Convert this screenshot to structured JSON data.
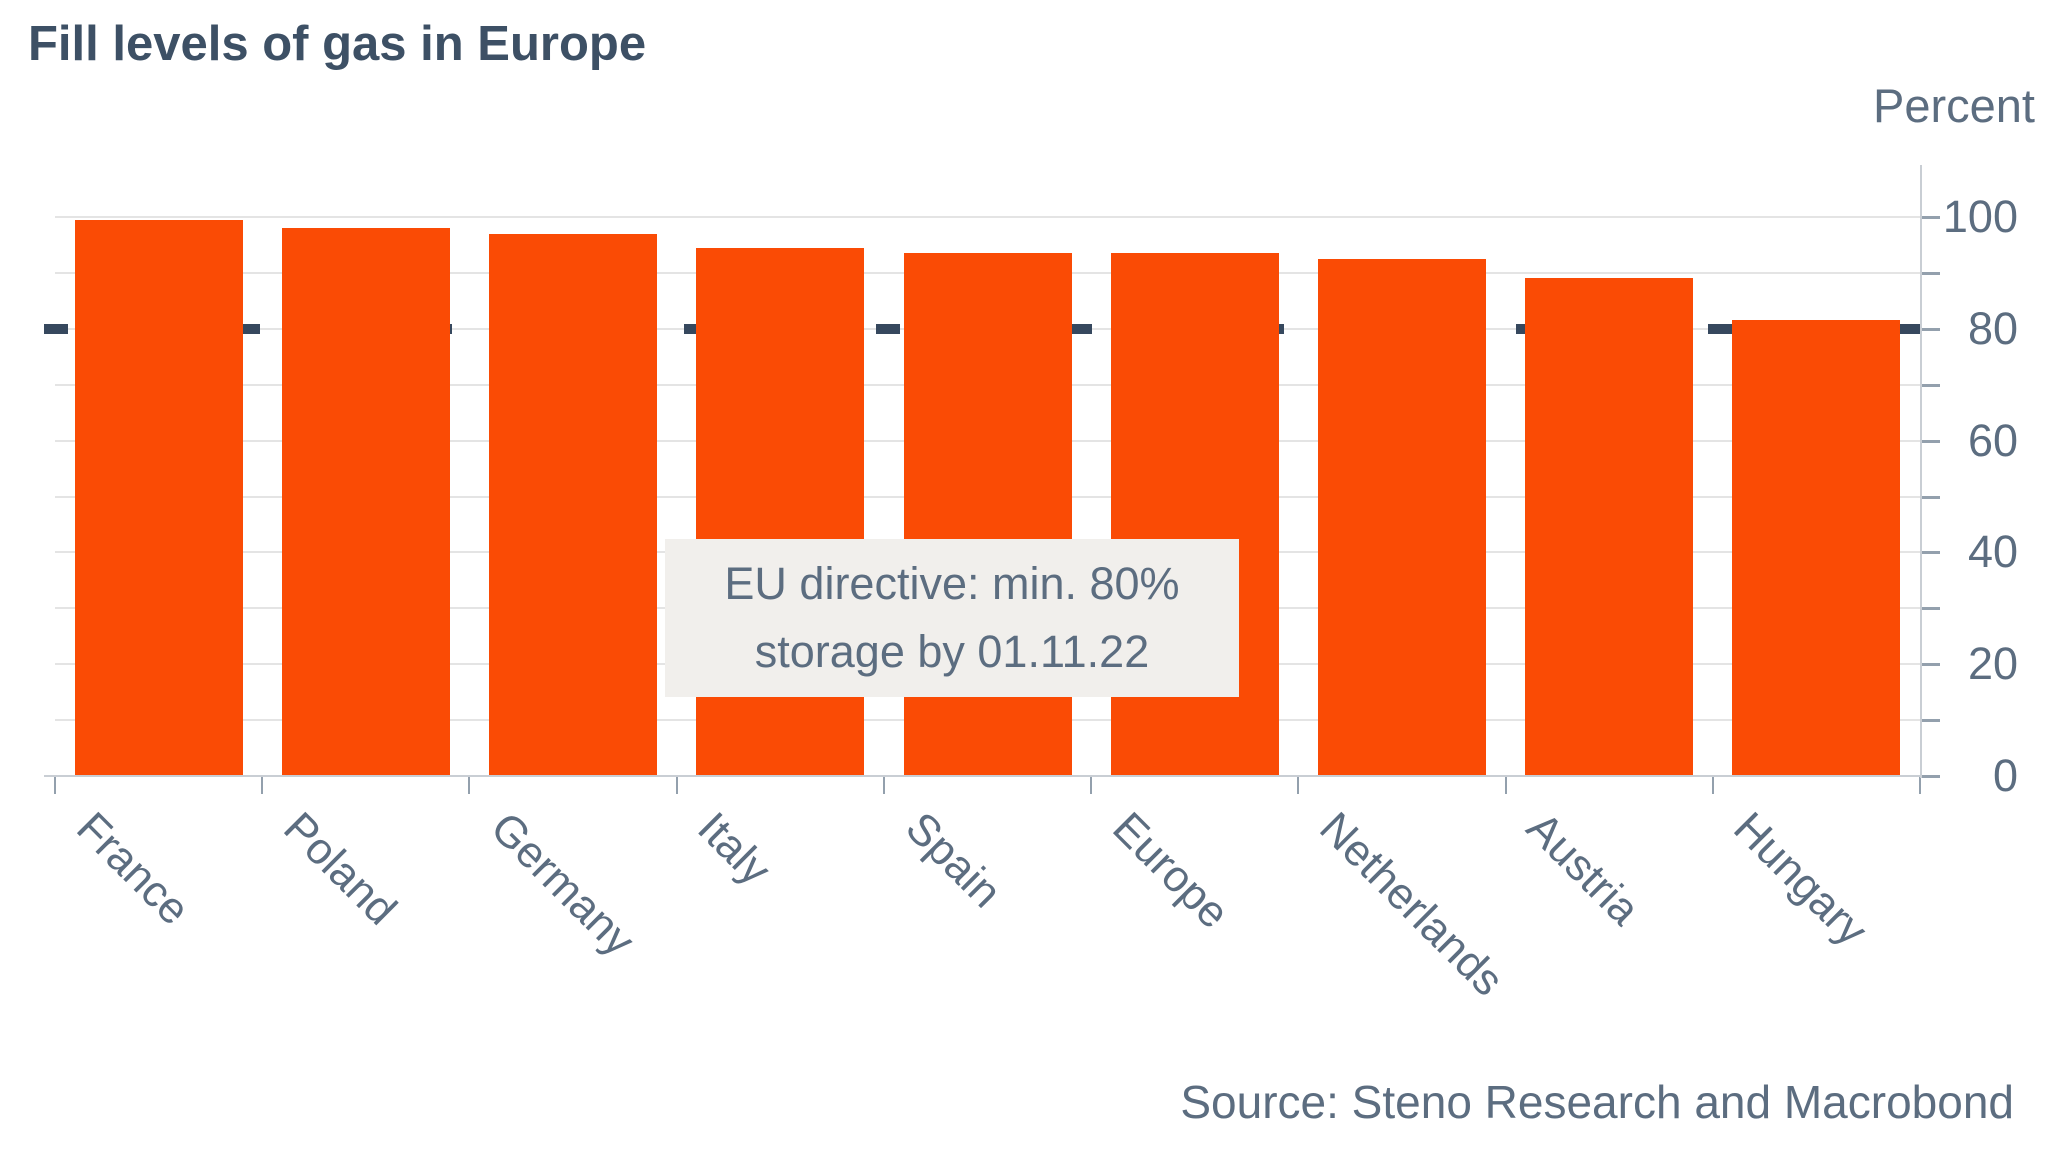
{
  "title": "Fill levels of gas in Europe",
  "axis": {
    "unit_label": "Percent",
    "tick_labels": [
      "0",
      "20",
      "40",
      "60",
      "80",
      "100"
    ]
  },
  "annotation": {
    "line1": "EU directive: min. 80%",
    "line2": "storage by 01.11.22"
  },
  "source": "Source: Steno Research and Macrobond",
  "colors": {
    "bar": "#fa4b05",
    "directive_line": "#36485e",
    "title": "#3d5065",
    "axis_text": "#5c6d80",
    "grid": "#e4e4e4",
    "axis_line": "#c9ced4",
    "tick": "#93a0ad",
    "annotation_bg": "#f1efec"
  },
  "chart_data": {
    "type": "bar",
    "title": "Fill levels of gas in Europe",
    "categories": [
      "France",
      "Poland",
      "Germany",
      "Italy",
      "Spain",
      "Europe",
      "Netherlands",
      "Austria",
      "Hungary"
    ],
    "values": [
      99.5,
      98,
      97,
      94.5,
      93.5,
      93.5,
      92.5,
      89,
      81.5
    ],
    "xlabel": "",
    "ylabel": "Percent",
    "ylim": [
      0,
      100
    ],
    "y_major_ticks": [
      0,
      20,
      40,
      60,
      80,
      100
    ],
    "y_minor_tick_step": 10,
    "grid": true,
    "grid_step": 10,
    "legend": "none",
    "axis_side": "right",
    "reference_line": {
      "value": 80,
      "style": "dashed",
      "label": "EU directive: min. 80% storage by 01.11.22"
    },
    "source": "Source: Steno Research and Macrobond"
  }
}
